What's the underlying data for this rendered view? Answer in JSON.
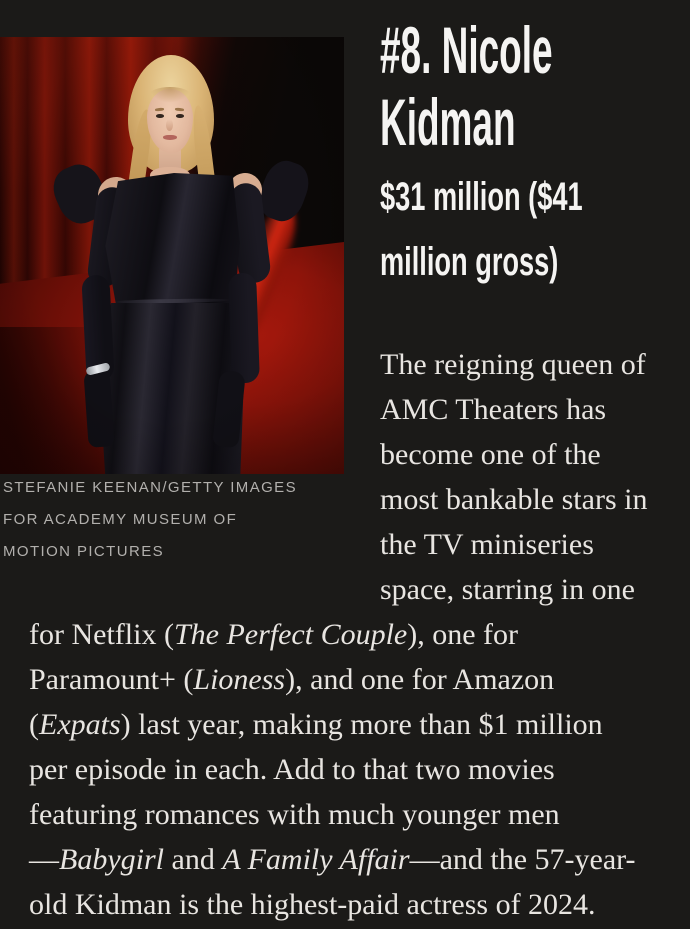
{
  "colors": {
    "page_bg": "#1b1a18",
    "headline": "#f5f4f2",
    "body_text": "#e8e5e1",
    "caption": "#b2b0ad",
    "curtain_red": "#5c0d06",
    "carpet_red": "#9b160b"
  },
  "article": {
    "headline": {
      "lines": [
        "#8. Nicole",
        "Kidman"
      ]
    },
    "earnings": {
      "lines": [
        "$31 million ($41",
        "million gross)"
      ]
    },
    "photo_credit": {
      "lines": [
        "STEFANIE KEENAN/GETTY IMAGES",
        "FOR ACADEMY MUSEUM OF",
        "MOTION PICTURES"
      ]
    },
    "body": {
      "column_lines": [
        "The reigning queen of",
        "AMC Theaters has",
        "become one of the",
        "most bankable stars in",
        "the TV miniseries",
        "space, starring in one"
      ],
      "wide_lines": [
        [
          {
            "t": "for Netflix ("
          },
          {
            "t": "The Perfect Couple",
            "i": true
          },
          {
            "t": "), one for"
          }
        ],
        [
          {
            "t": "Paramount+ ("
          },
          {
            "t": "Lioness",
            "i": true
          },
          {
            "t": "), and one for Amazon"
          }
        ],
        [
          {
            "t": "("
          },
          {
            "t": "Expats",
            "i": true
          },
          {
            "t": ") last year, making more than $1 million"
          }
        ],
        [
          {
            "t": "per episode in each. Add to that two movies"
          }
        ],
        [
          {
            "t": "featuring romances with much younger men"
          }
        ],
        [
          {
            "t": "—"
          },
          {
            "t": "Babygirl",
            "i": true
          },
          {
            "t": " and "
          },
          {
            "t": "A Family Affair",
            "i": true
          },
          {
            "t": "—and the 57-year-"
          }
        ],
        [
          {
            "t": "old Kidman is the highest-paid actress of 2024."
          }
        ]
      ]
    }
  }
}
